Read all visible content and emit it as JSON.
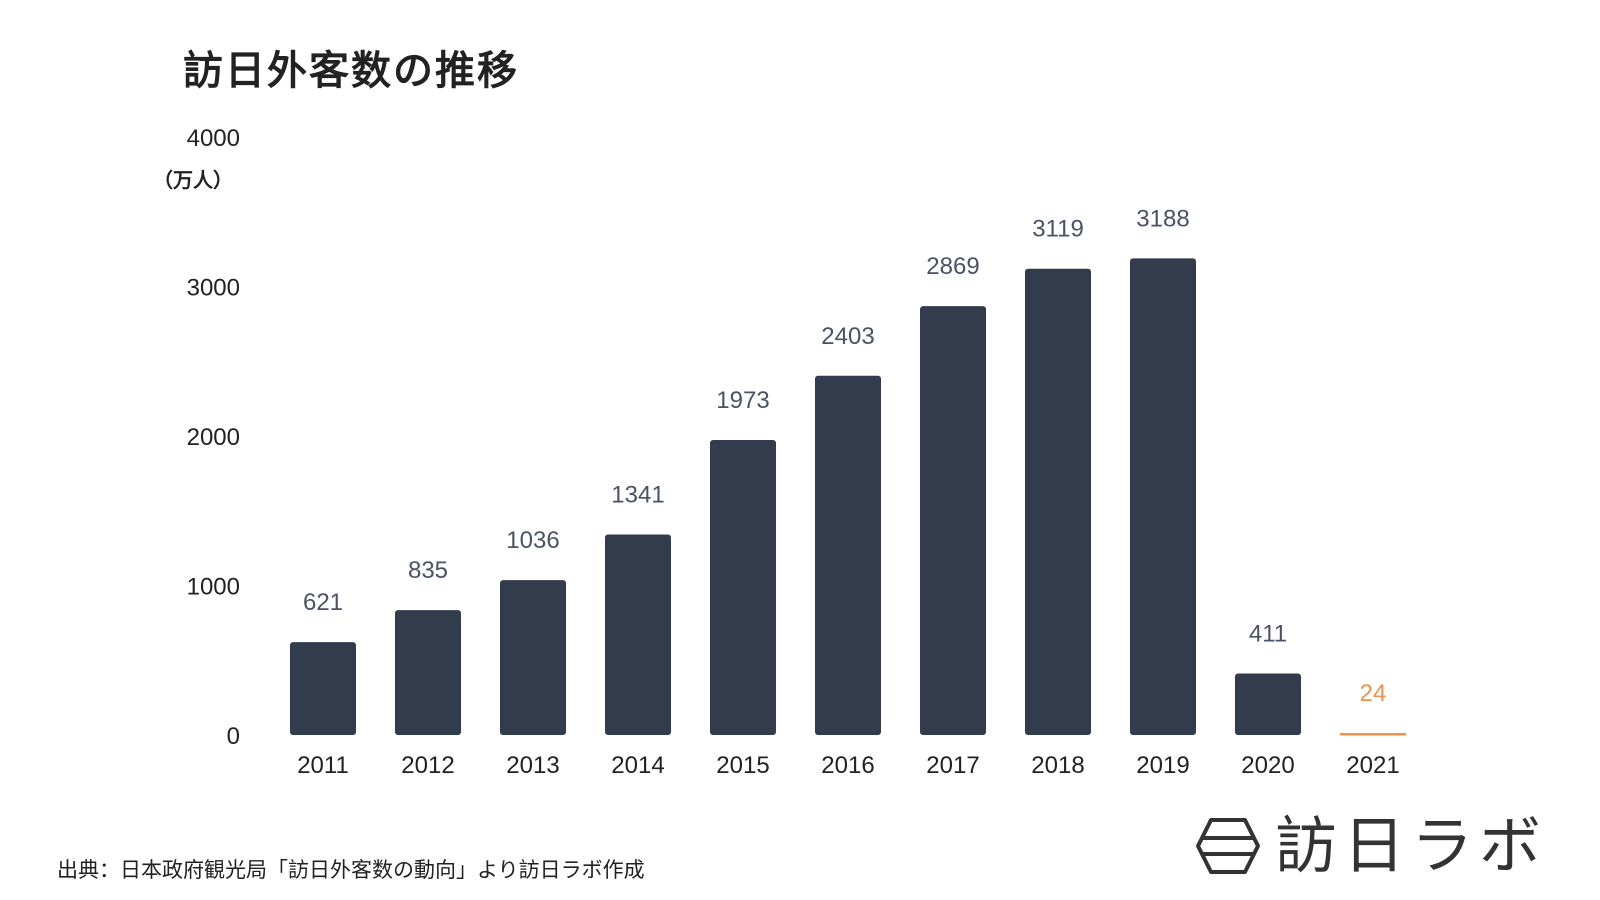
{
  "chart_data": {
    "type": "bar",
    "title": "訪日外客数の推移",
    "ylabel": "（万人）",
    "xlabel": "",
    "categories": [
      "2011",
      "2012",
      "2013",
      "2014",
      "2015",
      "2016",
      "2017",
      "2018",
      "2019",
      "2020",
      "2021"
    ],
    "values": [
      621,
      835,
      1036,
      1341,
      1973,
      2403,
      2869,
      3119,
      3188,
      411,
      24
    ],
    "value_labels": [
      "621",
      "835",
      "1036",
      "1341",
      "1973",
      "2403",
      "2869",
      "3119",
      "3188",
      "411",
      "24"
    ],
    "yticks": [
      "0",
      "1000",
      "2000",
      "3000",
      "4000"
    ],
    "ylim": [
      0,
      4000
    ],
    "grid": false,
    "legend": "none",
    "bar_color": "#333c4d",
    "highlight_category": "2021",
    "highlight_color": "#f0914a",
    "label_color": "#4a5364"
  },
  "footer": {
    "source": "出典：日本政府観光局「訪日外客数の動向」より訪日ラボ作成",
    "logo_text": "訪日ラボ",
    "logo_icon": "hexagon-logo-icon"
  }
}
